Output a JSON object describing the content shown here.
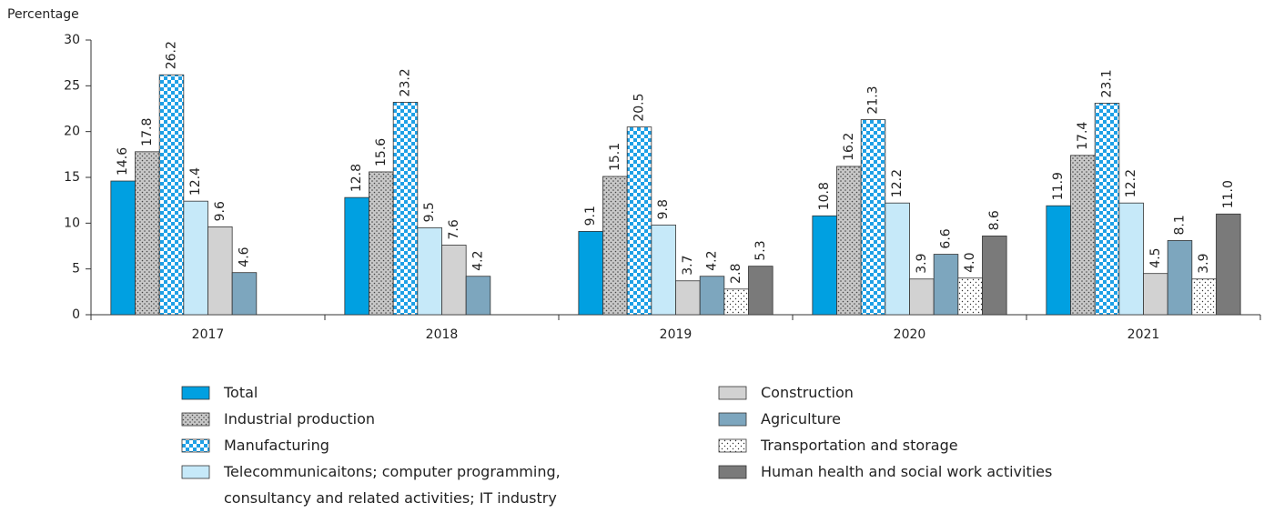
{
  "chart_data": {
    "type": "bar",
    "y_label": "Percentage",
    "categories": [
      "2017",
      "2018",
      "2019",
      "2020",
      "2021"
    ],
    "ylim": [
      0,
      30
    ],
    "yticks": [
      0,
      5,
      10,
      15,
      20,
      25,
      30
    ],
    "grid": false,
    "legend": "bottom",
    "series": [
      {
        "name": "Total",
        "color": "#00a0e1",
        "values": [
          14.6,
          12.8,
          9.1,
          10.8,
          11.9
        ],
        "value_labels": [
          "14.6",
          "12.8",
          "9.1",
          "10.8",
          "11.9"
        ]
      },
      {
        "name": "Industrial production",
        "color": "#c8c8c8",
        "pattern": "dots",
        "values": [
          17.8,
          15.6,
          15.1,
          16.2,
          17.4
        ],
        "value_labels": [
          "17.8",
          "15.6",
          "15.1",
          "16.2",
          "17.4"
        ]
      },
      {
        "name": "Manufacturing",
        "color": "#1ea0e6",
        "pattern": "checker",
        "values": [
          26.2,
          23.2,
          20.5,
          21.3,
          23.1
        ],
        "value_labels": [
          "26.2",
          "23.2",
          "20.5",
          "21.3",
          "23.1"
        ]
      },
      {
        "name": "Telecommunicaitons; computer programming, consultancy and related activities; IT industry",
        "color": "#c6e9f9",
        "values": [
          12.4,
          9.5,
          9.8,
          12.2,
          12.2
        ],
        "value_labels": [
          "12.4",
          "9.5",
          "9.8",
          "12.2",
          "12.2"
        ]
      },
      {
        "name": "Construction",
        "color": "#d2d2d2",
        "values": [
          9.6,
          7.6,
          3.7,
          3.9,
          4.5
        ],
        "value_labels": [
          "9.6",
          "7.6",
          "3.7",
          "3.9",
          "4.5"
        ]
      },
      {
        "name": "Agriculture",
        "color": "#7da6be",
        "values": [
          4.6,
          4.2,
          4.2,
          6.6,
          8.1
        ],
        "value_labels": [
          "4.6",
          "4.2",
          "4.2",
          "6.6",
          "8.1"
        ]
      },
      {
        "name": "Transportation and storage",
        "color": "#ffffff",
        "pattern": "sparse-dots",
        "values": [
          null,
          null,
          2.8,
          4.0,
          3.9
        ],
        "value_labels": [
          null,
          null,
          "2.8",
          "4.0",
          "3.9"
        ]
      },
      {
        "name": "Human health and social work activities",
        "color": "#7a7a7a",
        "values": [
          null,
          null,
          5.3,
          8.6,
          11.0
        ],
        "value_labels": [
          null,
          null,
          "5.3",
          "8.6",
          "11.0"
        ]
      }
    ]
  }
}
